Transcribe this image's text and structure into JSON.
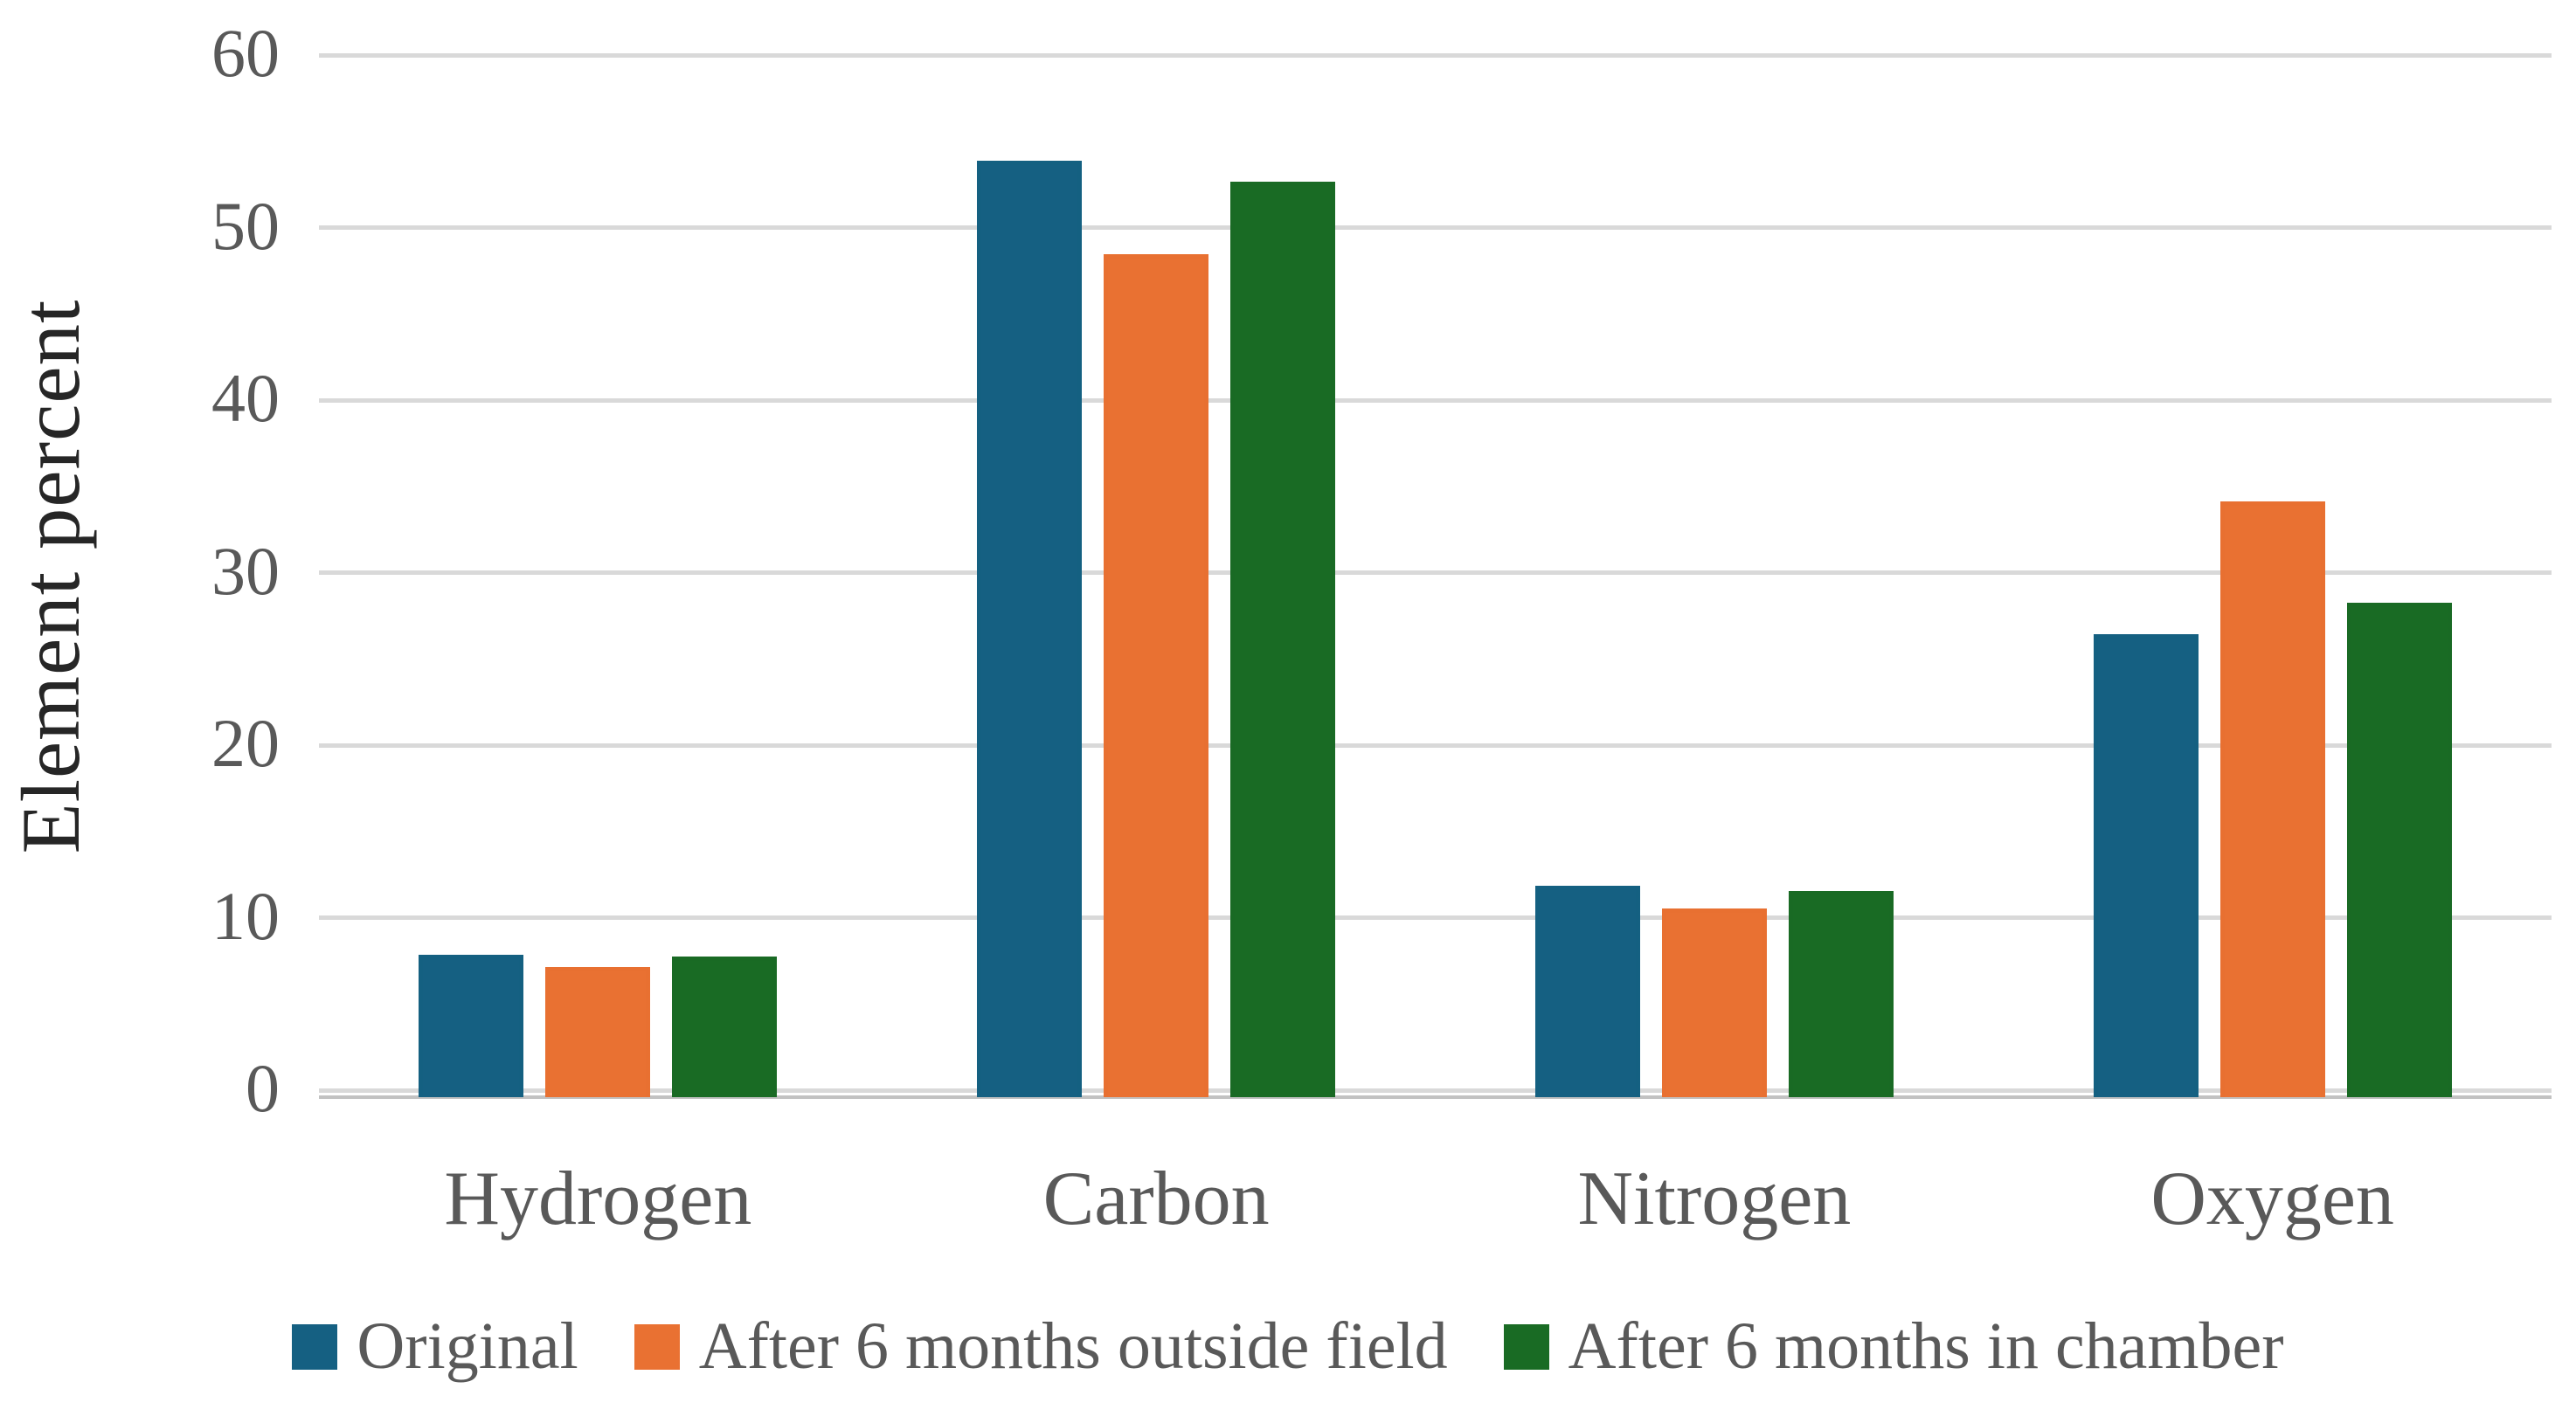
{
  "chart_data": {
    "type": "bar",
    "title": "",
    "categories": [
      "Hydrogen",
      "Carbon",
      "Nitrogen",
      "Oxygen"
    ],
    "series": [
      {
        "name": "Original",
        "color": "#156082",
        "values": [
          7.8,
          53.8,
          11.8,
          26.4
        ]
      },
      {
        "name": "After 6 months outside field",
        "color": "#E97132",
        "values": [
          7.1,
          48.4,
          10.5,
          34.1
        ]
      },
      {
        "name": "After 6 months in chamber",
        "color": "#196B24",
        "values": [
          7.7,
          52.6,
          11.5,
          28.2
        ]
      }
    ],
    "xlabel": "",
    "ylabel": "Element percent",
    "ylim": [
      0,
      60
    ],
    "yticks": [
      0,
      10,
      20,
      30,
      40,
      50,
      60
    ],
    "grid": "horizontal",
    "legend_position": "bottom",
    "colors": {
      "gridline": "#D9D9D9",
      "axis_line": "#C2C2C2",
      "tick_label": "#595959",
      "category_label": "#595959",
      "legend_text": "#595959",
      "axis_title": "#262626",
      "background": "#FFFFFF"
    }
  }
}
